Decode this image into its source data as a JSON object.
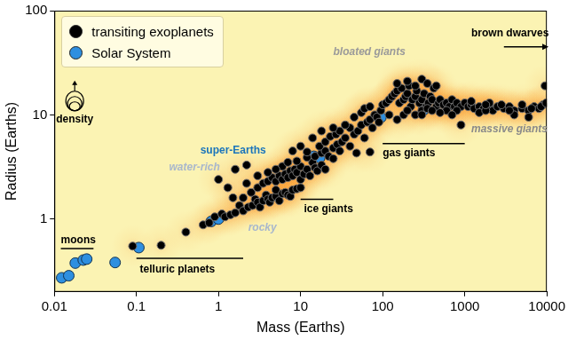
{
  "chart_data": {
    "type": "scatter",
    "x_label": "Mass (Earths)",
    "y_label": "Radius (Earths)",
    "log": true,
    "grid": false,
    "legend": "upper left",
    "xlim": [
      0.01,
      10000
    ],
    "xticks": [
      0.01,
      0.1,
      1,
      10,
      100,
      1000,
      10000
    ],
    "ylim": [
      0.2,
      100
    ],
    "yticks": [
      1,
      10,
      100
    ],
    "series": [
      {
        "name": "transiting exoplanets",
        "color": "#000000",
        "marker": "circle",
        "x": [
          0.09,
          0.2,
          0.4,
          0.65,
          0.77,
          0.9,
          1.1,
          1.2,
          1.4,
          1.6,
          1.8,
          2.0,
          2.3,
          2.6,
          2.8,
          3.0,
          3.2,
          3.5,
          3.8,
          4.0,
          4.2,
          4.5,
          5.0,
          5.0,
          5.5,
          6.0,
          6.5,
          7.0,
          7.5,
          8.0,
          9.0,
          10,
          1.5,
          2.0,
          2.5,
          3.0,
          3.5,
          4.0,
          4.5,
          5.0,
          5.5,
          6.0,
          6.5,
          7.0,
          7.5,
          8.0,
          8.5,
          9.0,
          10,
          10,
          11,
          12,
          13,
          14,
          15,
          16,
          18,
          20,
          6.0,
          4.0,
          3.0,
          2.2,
          5.0,
          7.0,
          9.0,
          12,
          1.3,
          1.0,
          1.6,
          2.2,
          15,
          18,
          20,
          22,
          25,
          25,
          28,
          30,
          32,
          35,
          12,
          17,
          20,
          23,
          27,
          40,
          45,
          50,
          40,
          55,
          60,
          65,
          70,
          75,
          80,
          85,
          90,
          30,
          35,
          25,
          45,
          55,
          60,
          70,
          95,
          100,
          8.0,
          10,
          14,
          18,
          48,
          70,
          110,
          120,
          130,
          140,
          150,
          160,
          170,
          180,
          190,
          200,
          210,
          220,
          230,
          250,
          260,
          280,
          300,
          320,
          340,
          360,
          380,
          400,
          420,
          450,
          480,
          500,
          550,
          600,
          650,
          700,
          750,
          800,
          900,
          1000,
          1100,
          1200,
          1300,
          1500,
          1700,
          2000,
          2200,
          2500,
          3000,
          3500,
          4000,
          5000,
          6000,
          7000,
          8000,
          9000,
          9500,
          150,
          200,
          250,
          300,
          350,
          450,
          120,
          150,
          180,
          200,
          250,
          300,
          350,
          400,
          600,
          800,
          900,
          300,
          500,
          700,
          1500,
          1800,
          4000,
          6000,
          1200,
          2000,
          1800,
          2800,
          3500,
          5000,
          6500,
          8500,
          9800
        ],
        "values": [
          0.55,
          0.56,
          0.75,
          0.88,
          0.92,
          1.05,
          1.12,
          1.05,
          1.1,
          1.15,
          1.35,
          1.2,
          1.3,
          1.35,
          1.55,
          1.45,
          1.3,
          1.5,
          1.7,
          1.55,
          1.45,
          1.6,
          1.65,
          1.9,
          1.5,
          1.75,
          1.8,
          1.7,
          1.65,
          1.9,
          1.95,
          2.0,
          1.6,
          1.6,
          1.8,
          2.0,
          2.2,
          2.3,
          2.5,
          2.3,
          2.6,
          2.4,
          2.7,
          2.5,
          2.9,
          2.6,
          3.0,
          2.8,
          2.4,
          3.2,
          2.7,
          3.0,
          2.6,
          3.5,
          3.1,
          2.9,
          3.3,
          3.0,
          3.2,
          2.8,
          2.6,
          2.2,
          3.0,
          3.5,
          3.6,
          3.9,
          2.0,
          2.4,
          3.0,
          3.3,
          4.0,
          4.3,
          4.5,
          4.0,
          4.8,
          3.8,
          5.2,
          4.5,
          5.5,
          6.0,
          4.4,
          5.0,
          5.5,
          6.2,
          6.5,
          5.0,
          6.5,
          7.0,
          7.5,
          8.0,
          6.0,
          8.5,
          9.0,
          7.5,
          10,
          9.5,
          8.5,
          7.0,
          8.0,
          7.5,
          9.5,
          10.5,
          11.5,
          12,
          11,
          12.5,
          4.5,
          5.0,
          6.0,
          7.0,
          4.3,
          4.4,
          13,
          14,
          15,
          16,
          17,
          13,
          18,
          14,
          15,
          16,
          19,
          12,
          14,
          15,
          17,
          13,
          14,
          16,
          12,
          13,
          15,
          14,
          18,
          12,
          13,
          14,
          12.5,
          13,
          12,
          14,
          12,
          13,
          12,
          13,
          12,
          12.5,
          11.5,
          12,
          11.5,
          12,
          11,
          12,
          11.5,
          12,
          11,
          11.5,
          11,
          12,
          11.5,
          12.5,
          19,
          20,
          21,
          19,
          22,
          20,
          19,
          10,
          9,
          10,
          11,
          10,
          11,
          11.5,
          11,
          11,
          11,
          8,
          10,
          10.5,
          10,
          10.5,
          11,
          10,
          9.5,
          13.5,
          13,
          12.5,
          12.5,
          11,
          12.5,
          11.5,
          12,
          13
        ]
      },
      {
        "name": "Solar System",
        "color": "#2e8fe0",
        "marker": "circle",
        "x": [
          0.0123,
          0.015,
          0.018,
          0.0225,
          0.0248,
          0.055,
          0.107,
          0.815,
          1,
          14.5,
          17.1,
          95.2,
          317.8
        ],
        "values": [
          0.273,
          0.286,
          0.378,
          0.404,
          0.413,
          0.383,
          0.532,
          0.949,
          1,
          4.0,
          3.88,
          9.45,
          11.2
        ]
      }
    ],
    "annotations": [
      {
        "text": "moons",
        "x": 0.012,
        "y": 0.62,
        "xrange": [
          0.012,
          0.03
        ],
        "line_y": 0.52,
        "color": "#000000"
      },
      {
        "text": "telluric planets",
        "x": 0.11,
        "y": 0.33,
        "xrange": [
          0.1,
          2
        ],
        "line_y": 0.42,
        "color": "#000000"
      },
      {
        "text": "ice giants",
        "x": 11,
        "y": 1.25,
        "xrange": [
          10,
          25
        ],
        "line_y": 1.55,
        "color": "#000000"
      },
      {
        "text": "gas giants",
        "x": 100,
        "y": 4.3,
        "xrange": [
          100,
          1000
        ],
        "line_y": 5.3,
        "color": "#000000"
      },
      {
        "text": "brown dwarves",
        "x": 1200,
        "y": 60,
        "xrange": [
          3000,
          9500
        ],
        "line_y": 45,
        "marker": "arrow",
        "color": "#000000"
      },
      {
        "text": "super-Earths",
        "x": 0.6,
        "y": 4.5,
        "color": "#1b75bb"
      },
      {
        "text": "water-rich",
        "x": 0.25,
        "y": 3.1,
        "color": "#a8b7cc"
      },
      {
        "text": "rocky",
        "x": 2.3,
        "y": 0.82,
        "color": "#a8b7cc"
      },
      {
        "text": "bloated giants",
        "x": 25,
        "y": 40,
        "color": "#9a9a9a"
      },
      {
        "text": "massive giants",
        "x": 1200,
        "y": 7.2,
        "color": "#8a8a8a"
      },
      {
        "text": "density",
        "x": 0.0105,
        "y": 9,
        "marker": "circles",
        "color": "#000000"
      }
    ]
  }
}
